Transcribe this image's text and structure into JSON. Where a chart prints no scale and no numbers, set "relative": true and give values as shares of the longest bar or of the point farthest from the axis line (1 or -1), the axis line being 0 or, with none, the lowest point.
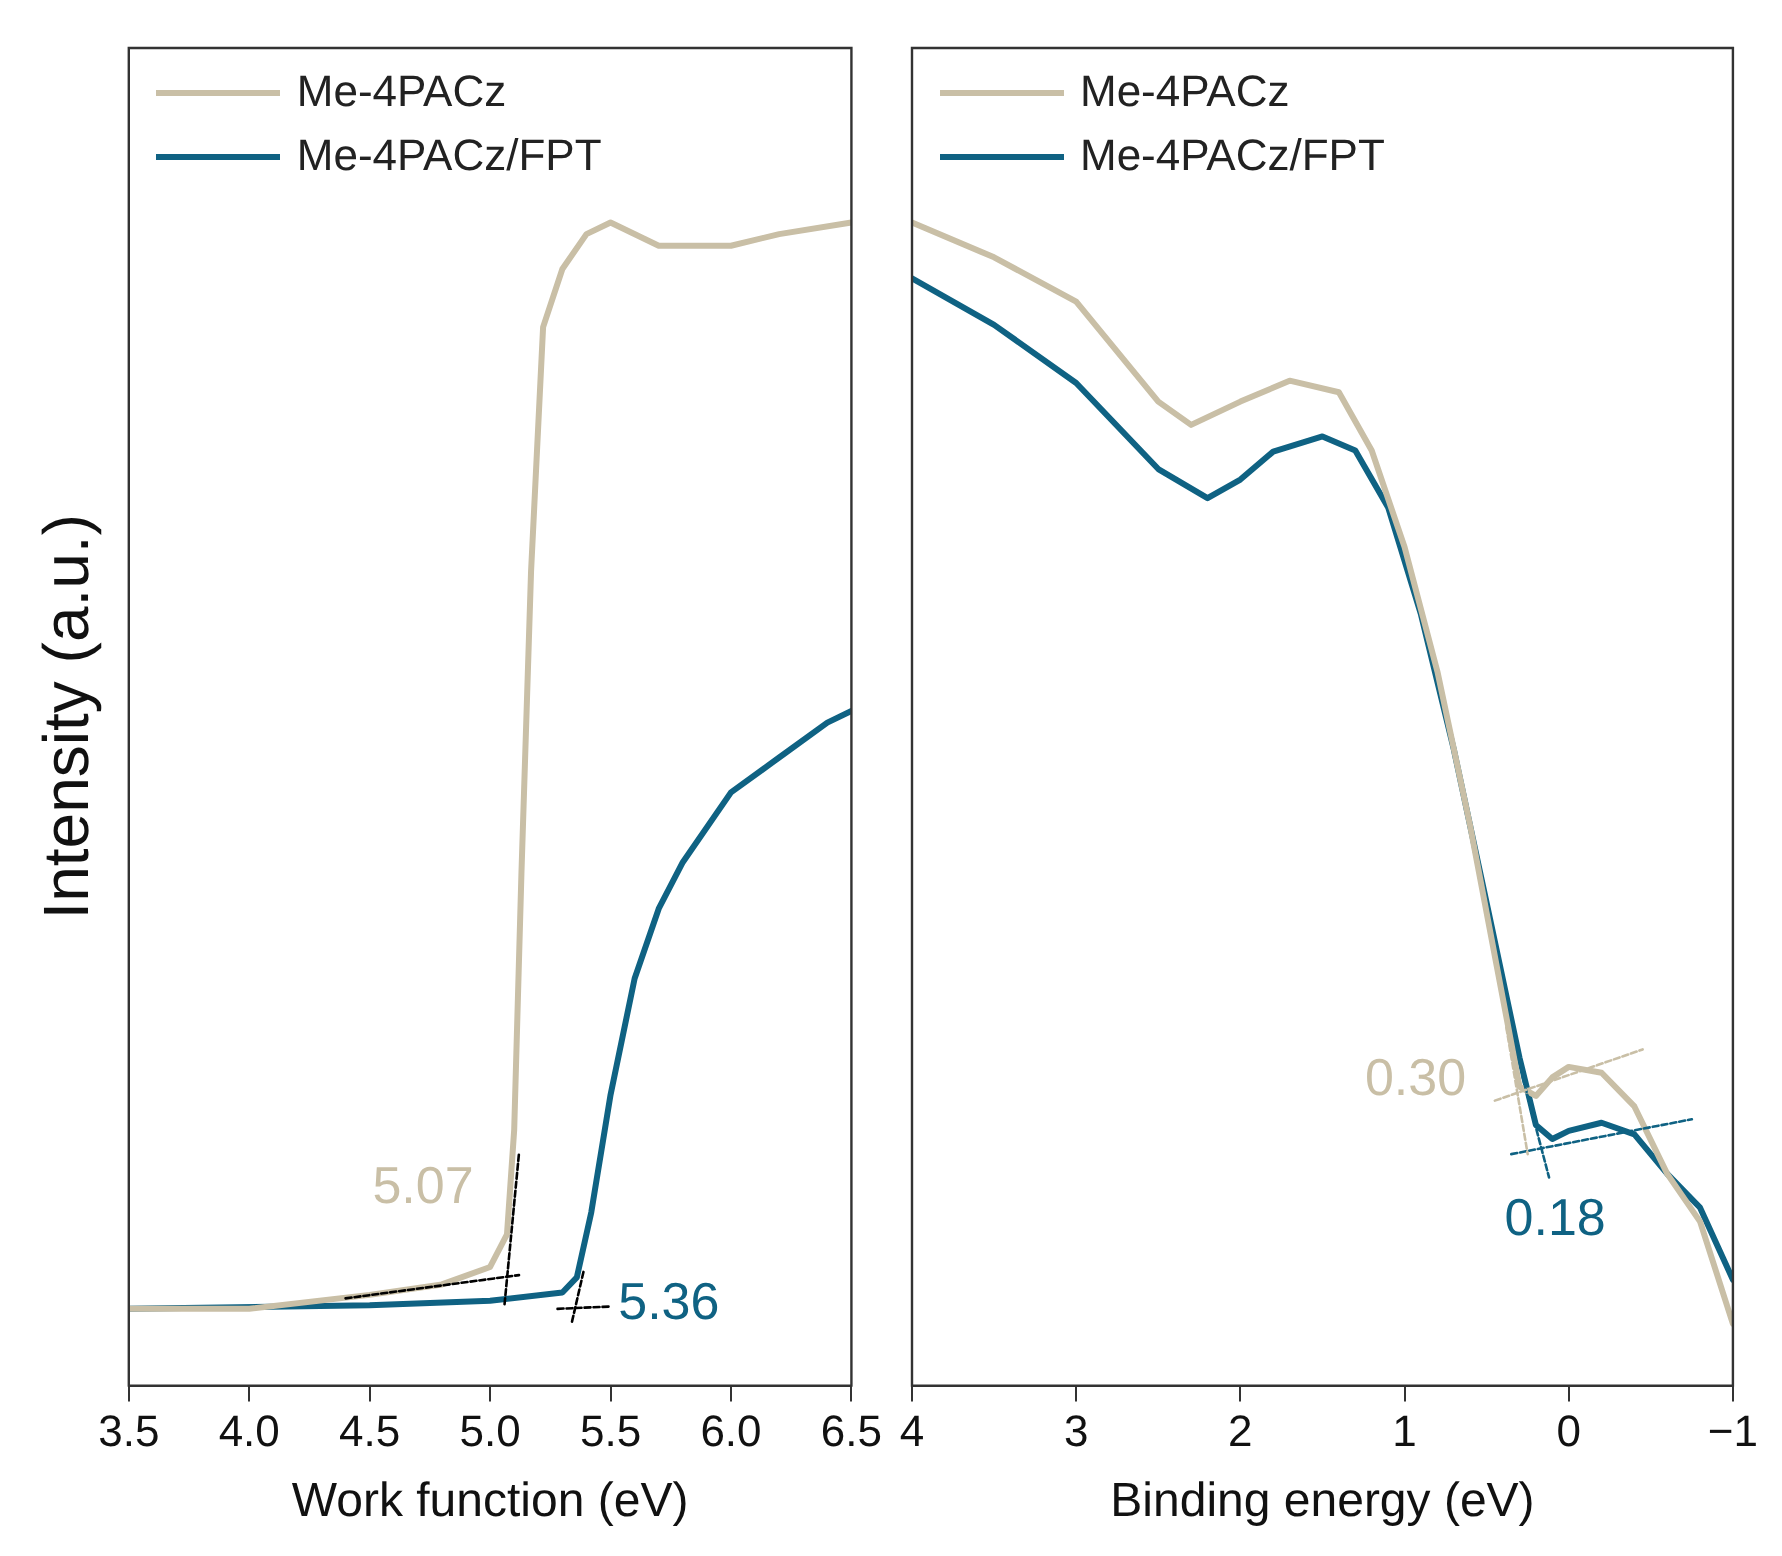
{
  "chart_data": [
    {
      "type": "line",
      "xlabel": "Work function (eV)",
      "ylabel": "Intensity (a.u.)",
      "relative": true,
      "xlim": [
        3.5,
        6.5
      ],
      "xticks": [
        {
          "value": 3.5,
          "label": "3.5"
        },
        {
          "value": 4,
          "label": "4.0"
        },
        {
          "value": 4.5,
          "label": "4.5"
        },
        {
          "value": 5,
          "label": "5.0"
        },
        {
          "value": 5.5,
          "label": "5.5"
        },
        {
          "value": 6,
          "label": "6.0"
        },
        {
          "value": 6.5,
          "label": "6.5"
        }
      ],
      "grid": false,
      "legend": "top left",
      "tick_labels": "x",
      "annotations": [
        {
          "text": "5.07",
          "x": 5.07,
          "y": 0.094
        },
        {
          "text": "5.36",
          "x": 5.36,
          "y": 0.066
        }
      ],
      "series": [
        {
          "name": "Me-4PACz",
          "color": "#c9bfa6",
          "x": [
            3.5,
            4.0,
            4.5,
            4.8,
            5.0,
            5.07,
            5.1,
            5.13,
            5.17,
            5.22,
            5.3,
            5.4,
            5.5,
            5.7,
            6.0,
            6.2,
            6.5
          ],
          "values": [
            0.066,
            0.066,
            0.078,
            0.087,
            0.102,
            0.13,
            0.22,
            0.44,
            0.7,
            0.91,
            0.96,
            0.99,
            1.0,
            0.98,
            0.98,
            0.99,
            1.0
          ]
        },
        {
          "name": "Me-4PACz/FPT",
          "color": "#0f6283",
          "x": [
            3.5,
            4.5,
            5.0,
            5.3,
            5.36,
            5.42,
            5.5,
            5.6,
            5.7,
            5.8,
            6.0,
            6.2,
            6.4,
            6.5
          ],
          "values": [
            0.066,
            0.069,
            0.073,
            0.08,
            0.093,
            0.149,
            0.25,
            0.35,
            0.41,
            0.45,
            0.51,
            0.54,
            0.57,
            0.58
          ]
        },
        {
          "type": "line",
          "color": "#000000",
          "line_style": "dotted",
          "x": [
            4.4,
            5.12
          ],
          "values": [
            0.075,
            0.095
          ]
        },
        {
          "type": "line",
          "color": "#000000",
          "line_style": "dotted",
          "x": [
            5.06,
            5.12
          ],
          "values": [
            0.07,
            0.2
          ]
        },
        {
          "type": "line",
          "color": "#000000",
          "line_style": "dotted",
          "x": [
            5.28,
            5.5
          ],
          "values": [
            0.066,
            0.068
          ]
        },
        {
          "type": "line",
          "color": "#000000",
          "line_style": "dotted",
          "x": [
            5.34,
            5.39
          ],
          "values": [
            0.055,
            0.1
          ]
        }
      ]
    },
    {
      "type": "line",
      "xlabel": "Binding energy (eV)",
      "relative": true,
      "xlim": [
        4,
        -1
      ],
      "xticks": [
        4,
        3,
        2,
        1,
        0,
        {
          "value": -1,
          "label": "−1"
        }
      ],
      "grid": false,
      "legend": "top left",
      "tick_labels": "x",
      "annotations": [
        {
          "text": "0.30",
          "x": 0.3,
          "y": 0.252
        },
        {
          "text": "0.18",
          "x": 0.18,
          "y": 0.211
        }
      ],
      "series": [
        {
          "name": "Me-4PACz",
          "color": "#c9bfa6",
          "x": [
            4,
            3.5,
            3,
            2.5,
            2.3,
            2,
            1.7,
            1.4,
            1.2,
            1.0,
            0.8,
            0.6,
            0.4,
            0.3,
            0.2,
            0.1,
            0,
            -0.2,
            -0.4,
            -0.6,
            -0.8,
            -1
          ],
          "values": [
            1,
            0.97,
            0.932,
            0.846,
            0.826,
            0.846,
            0.864,
            0.854,
            0.804,
            0.721,
            0.614,
            0.481,
            0.332,
            0.257,
            0.249,
            0.265,
            0.274,
            0.269,
            0.24,
            0.182,
            0.141,
            0.053
          ]
        },
        {
          "name": "Me-4PACz/FPT",
          "color": "#0f6283",
          "x": [
            4,
            3.5,
            3,
            2.5,
            2.2,
            2,
            1.8,
            1.5,
            1.3,
            1.1,
            0.9,
            0.7,
            0.5,
            0.3,
            0.2,
            0.1,
            0,
            -0.2,
            -0.4,
            -0.6,
            -0.8,
            -1
          ],
          "values": [
            0.952,
            0.912,
            0.862,
            0.788,
            0.763,
            0.779,
            0.803,
            0.816,
            0.804,
            0.755,
            0.663,
            0.547,
            0.415,
            0.282,
            0.224,
            0.212,
            0.219,
            0.226,
            0.216,
            0.182,
            0.153,
            0.091
          ]
        },
        {
          "type": "line",
          "color": "#c9bfa6",
          "line_style": "dotted",
          "x": [
            0.45,
            -0.45
          ],
          "values": [
            0.245,
            0.289
          ]
        },
        {
          "type": "line",
          "color": "#c9bfa6",
          "line_style": "dotted",
          "x": [
            0.38,
            0.25
          ],
          "values": [
            0.308,
            0.199
          ]
        },
        {
          "type": "line",
          "color": "#0f6283",
          "line_style": "dotted",
          "x": [
            0.35,
            -0.75
          ],
          "values": [
            0.199,
            0.229
          ]
        },
        {
          "type": "line",
          "color": "#0f6283",
          "line_style": "dotted",
          "x": [
            0.28,
            0.12
          ],
          "values": [
            0.265,
            0.179
          ]
        }
      ]
    }
  ]
}
